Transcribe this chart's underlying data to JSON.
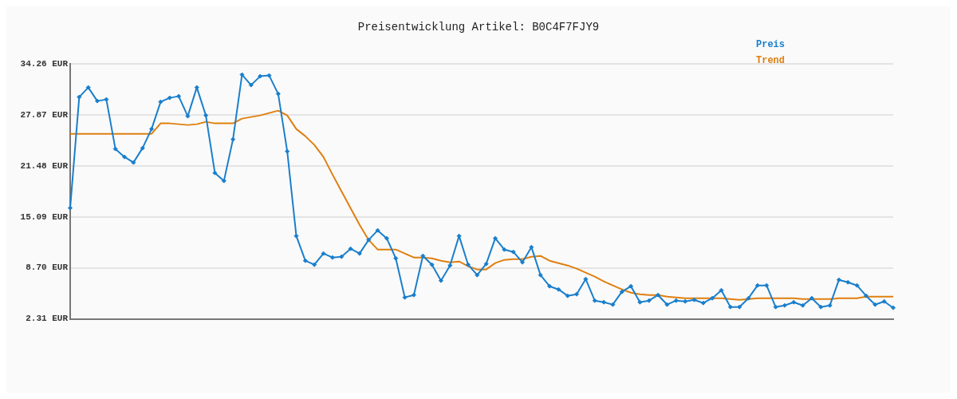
{
  "chart_data": {
    "type": "line",
    "title": "Preisentwicklung Artikel: B0C4F7FJY9",
    "categories": [
      null,
      null,
      null,
      null,
      null,
      null,
      null,
      null,
      null,
      null,
      null,
      null,
      null,
      null,
      null,
      null,
      null,
      null,
      null,
      null,
      null,
      null,
      null,
      null,
      null,
      null,
      null,
      null,
      null,
      null,
      null,
      null,
      null,
      null,
      null,
      null,
      null,
      null,
      null,
      null,
      null,
      null,
      null,
      null,
      null,
      null,
      null,
      null,
      null,
      null,
      null,
      null,
      null,
      null,
      null,
      null,
      null,
      null,
      null,
      null,
      null,
      null,
      null,
      null,
      null,
      null,
      null,
      null,
      null,
      null,
      null,
      null,
      null,
      null,
      null,
      null,
      null,
      null,
      null,
      null,
      null,
      null,
      null,
      null,
      null,
      null,
      null,
      null,
      null,
      null,
      null,
      null
    ],
    "series": [
      {
        "name": "Preis",
        "color": "#1a7fcc",
        "marker": "diamond",
        "values": [
          16.2,
          30.1,
          31.3,
          29.6,
          29.8,
          23.6,
          22.6,
          21.9,
          23.7,
          26.1,
          29.5,
          30.0,
          30.2,
          27.7,
          31.3,
          27.8,
          20.6,
          19.6,
          24.8,
          32.9,
          31.6,
          32.7,
          32.8,
          30.5,
          23.3,
          12.7,
          9.6,
          9.1,
          10.5,
          10.0,
          10.1,
          11.1,
          10.5,
          12.2,
          13.4,
          12.4,
          9.9,
          5.0,
          5.3,
          10.2,
          9.1,
          7.1,
          9.0,
          12.7,
          9.1,
          7.8,
          9.2,
          12.4,
          11.0,
          10.7,
          9.4,
          11.3,
          7.8,
          6.4,
          6.0,
          5.2,
          5.4,
          7.3,
          4.6,
          4.4,
          4.1,
          5.7,
          6.4,
          4.4,
          4.6,
          5.3,
          4.1,
          4.6,
          4.5,
          4.7,
          4.3,
          4.9,
          5.9,
          3.8,
          3.8,
          4.9,
          6.5,
          6.5,
          3.8,
          4.0,
          4.4,
          4.0,
          4.9,
          3.8,
          4.0,
          7.2,
          6.9,
          6.5,
          5.2,
          4.1,
          4.5,
          3.7
        ]
      },
      {
        "name": "Trend",
        "color": "#e07f10",
        "marker": "none",
        "values": [
          25.5,
          25.5,
          25.5,
          25.5,
          25.5,
          25.5,
          25.5,
          25.5,
          25.5,
          25.5,
          26.8,
          26.8,
          26.7,
          26.6,
          26.7,
          27.0,
          26.8,
          26.8,
          26.8,
          27.4,
          27.6,
          27.8,
          28.1,
          28.4,
          27.8,
          26.1,
          25.2,
          24.1,
          22.6,
          20.4,
          18.3,
          16.2,
          14.1,
          12.2,
          11.0,
          11.0,
          11.0,
          10.5,
          10.0,
          10.0,
          9.9,
          9.6,
          9.4,
          9.5,
          8.9,
          8.5,
          8.5,
          9.3,
          9.7,
          9.8,
          9.8,
          10.1,
          10.2,
          9.6,
          9.3,
          9.0,
          8.6,
          8.1,
          7.6,
          7.0,
          6.5,
          6.0,
          5.6,
          5.4,
          5.3,
          5.3,
          5.1,
          5.0,
          4.9,
          4.9,
          4.9,
          4.9,
          4.9,
          4.8,
          4.7,
          4.8,
          4.9,
          4.9,
          4.9,
          4.9,
          4.9,
          4.8,
          4.8,
          4.8,
          4.8,
          4.9,
          4.9,
          4.9,
          5.1,
          5.1,
          5.1,
          5.1
        ]
      }
    ],
    "ylim": [
      2.31,
      34.26
    ],
    "yticks": [
      {
        "value": 2.31,
        "label": "2.31 EUR"
      },
      {
        "value": 8.7,
        "label": "8.70 EUR"
      },
      {
        "value": 15.09,
        "label": "15.09 EUR"
      },
      {
        "value": 21.48,
        "label": "21.48 EUR"
      },
      {
        "value": 27.87,
        "label": "27.87 EUR"
      },
      {
        "value": 34.26,
        "label": "34.26 EUR"
      }
    ],
    "grid": "y",
    "legend": "top right",
    "line_style": "solid"
  }
}
